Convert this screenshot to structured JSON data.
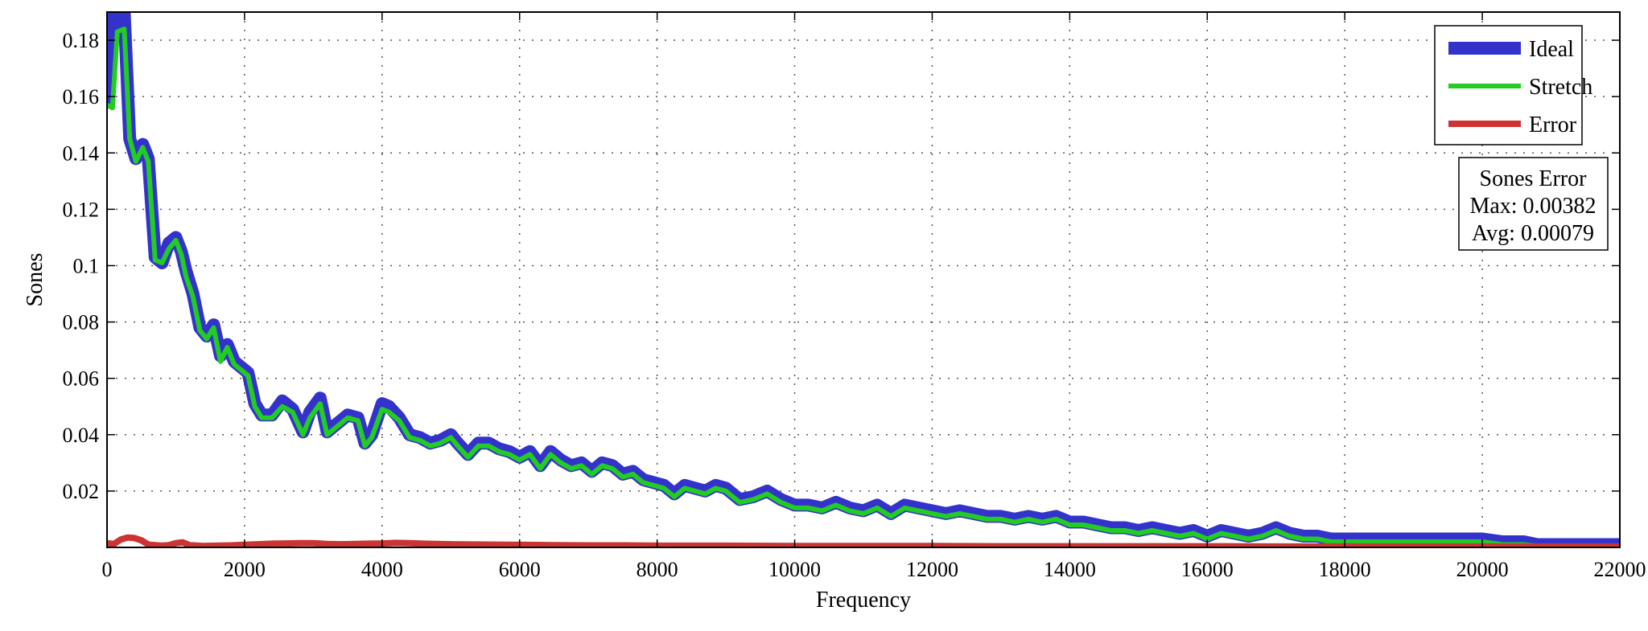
{
  "chart_data": {
    "type": "line",
    "xlabel": "Frequency",
    "ylabel": "Sones",
    "xlim": [
      0,
      22000
    ],
    "ylim": [
      0,
      0.19
    ],
    "grid": true,
    "x_ticks": [
      0,
      2000,
      4000,
      6000,
      8000,
      10000,
      12000,
      14000,
      16000,
      18000,
      20000,
      22000
    ],
    "x_tick_labels": [
      "0",
      "2000",
      "4000",
      "6000",
      "8000",
      "10000",
      "12000",
      "14000",
      "16000",
      "18000",
      "20000",
      "22000"
    ],
    "y_ticks": [
      0.02,
      0.04,
      0.06,
      0.08,
      0.1,
      0.12,
      0.14,
      0.16,
      0.18
    ],
    "y_tick_labels": [
      "0.02",
      "0.04",
      "0.06",
      "0.08",
      "0.1",
      "0.12",
      "0.14",
      "0.16",
      "0.18"
    ],
    "legend_position": "top-right",
    "series": [
      {
        "name": "Ideal",
        "color": "#3333cc",
        "x": [
          0,
          80,
          150,
          250,
          330,
          420,
          520,
          600,
          700,
          800,
          900,
          1000,
          1080,
          1150,
          1250,
          1350,
          1450,
          1550,
          1650,
          1750,
          1850,
          1950,
          2050,
          2150,
          2250,
          2400,
          2550,
          2700,
          2850,
          2950,
          3100,
          3200,
          3350,
          3500,
          3650,
          3750,
          3850,
          4000,
          4100,
          4250,
          4400,
          4550,
          4700,
          4850,
          5000,
          5100,
          5250,
          5400,
          5550,
          5700,
          5850,
          6000,
          6150,
          6300,
          6450,
          6600,
          6750,
          6900,
          7050,
          7200,
          7350,
          7500,
          7650,
          7800,
          7950,
          8100,
          8250,
          8400,
          8550,
          8700,
          8850,
          9000,
          9200,
          9400,
          9600,
          9800,
          10000,
          10200,
          10400,
          10600,
          10800,
          11000,
          11200,
          11400,
          11600,
          11800,
          12000,
          12200,
          12400,
          12600,
          12800,
          13000,
          13200,
          13400,
          13600,
          13800,
          14000,
          14200,
          14400,
          14600,
          14800,
          15000,
          15200,
          15400,
          15600,
          15800,
          16000,
          16200,
          16400,
          16600,
          16800,
          17000,
          17200,
          17400,
          17600,
          17800,
          18000,
          18200,
          18500,
          18800,
          19100,
          19400,
          19700,
          20000,
          20300,
          20600,
          20800,
          21000,
          21400,
          22000
        ],
        "values": [
          0.158,
          0.19,
          0.185,
          0.19,
          0.145,
          0.138,
          0.143,
          0.138,
          0.103,
          0.101,
          0.108,
          0.11,
          0.105,
          0.098,
          0.09,
          0.078,
          0.075,
          0.079,
          0.068,
          0.072,
          0.066,
          0.064,
          0.062,
          0.051,
          0.047,
          0.047,
          0.052,
          0.049,
          0.041,
          0.048,
          0.053,
          0.041,
          0.044,
          0.047,
          0.046,
          0.037,
          0.04,
          0.051,
          0.05,
          0.046,
          0.04,
          0.039,
          0.037,
          0.038,
          0.04,
          0.037,
          0.033,
          0.037,
          0.037,
          0.035,
          0.034,
          0.032,
          0.034,
          0.029,
          0.034,
          0.031,
          0.029,
          0.03,
          0.027,
          0.03,
          0.029,
          0.026,
          0.027,
          0.024,
          0.023,
          0.022,
          0.019,
          0.022,
          0.021,
          0.02,
          0.022,
          0.021,
          0.017,
          0.018,
          0.02,
          0.017,
          0.015,
          0.015,
          0.014,
          0.016,
          0.014,
          0.013,
          0.015,
          0.012,
          0.015,
          0.014,
          0.013,
          0.012,
          0.013,
          0.012,
          0.011,
          0.011,
          0.01,
          0.011,
          0.01,
          0.011,
          0.009,
          0.009,
          0.008,
          0.007,
          0.007,
          0.006,
          0.007,
          0.006,
          0.005,
          0.006,
          0.004,
          0.006,
          0.005,
          0.004,
          0.005,
          0.007,
          0.005,
          0.004,
          0.004,
          0.003,
          0.003,
          0.003,
          0.003,
          0.003,
          0.003,
          0.003,
          0.003,
          0.003,
          0.002,
          0.002,
          0.001,
          0.001,
          0.001,
          0.001
        ]
      },
      {
        "name": "Stretch",
        "color": "#22cc22",
        "x": [
          0,
          80,
          150,
          250,
          330,
          420,
          520,
          600,
          700,
          800,
          900,
          1000,
          1080,
          1150,
          1250,
          1350,
          1450,
          1550,
          1650,
          1750,
          1850,
          1950,
          2050,
          2150,
          2250,
          2400,
          2550,
          2700,
          2850,
          2950,
          3100,
          3200,
          3350,
          3500,
          3650,
          3750,
          3850,
          4000,
          4100,
          4250,
          4400,
          4550,
          4700,
          4850,
          5000,
          5100,
          5250,
          5400,
          5550,
          5700,
          5850,
          6000,
          6150,
          6300,
          6450,
          6600,
          6750,
          6900,
          7050,
          7200,
          7350,
          7500,
          7650,
          7800,
          7950,
          8100,
          8250,
          8400,
          8550,
          8700,
          8850,
          9000,
          9200,
          9400,
          9600,
          9800,
          10000,
          10200,
          10400,
          10600,
          10800,
          11000,
          11200,
          11400,
          11600,
          11800,
          12000,
          12200,
          12400,
          12600,
          12800,
          13000,
          13200,
          13400,
          13600,
          13800,
          14000,
          14200,
          14400,
          14600,
          14800,
          15000,
          15200,
          15400,
          15600,
          15800,
          16000,
          16200,
          16400,
          16600,
          16800,
          17000,
          17200,
          17400,
          17600,
          17800,
          18000,
          18200,
          18500,
          18800,
          19100,
          19400,
          19700,
          20000,
          20300,
          20600,
          20800,
          21000,
          21400,
          22000
        ],
        "values": [
          0.157,
          0.156,
          0.183,
          0.184,
          0.145,
          0.137,
          0.142,
          0.137,
          0.102,
          0.101,
          0.106,
          0.109,
          0.104,
          0.096,
          0.089,
          0.077,
          0.074,
          0.078,
          0.066,
          0.071,
          0.065,
          0.063,
          0.061,
          0.05,
          0.046,
          0.046,
          0.05,
          0.048,
          0.04,
          0.046,
          0.051,
          0.04,
          0.043,
          0.046,
          0.045,
          0.036,
          0.039,
          0.049,
          0.048,
          0.045,
          0.039,
          0.038,
          0.036,
          0.037,
          0.039,
          0.036,
          0.032,
          0.036,
          0.036,
          0.034,
          0.033,
          0.031,
          0.033,
          0.028,
          0.033,
          0.03,
          0.028,
          0.029,
          0.026,
          0.029,
          0.028,
          0.025,
          0.026,
          0.023,
          0.022,
          0.021,
          0.018,
          0.021,
          0.02,
          0.019,
          0.021,
          0.02,
          0.016,
          0.017,
          0.019,
          0.016,
          0.014,
          0.014,
          0.013,
          0.015,
          0.013,
          0.012,
          0.014,
          0.011,
          0.014,
          0.013,
          0.012,
          0.011,
          0.012,
          0.011,
          0.01,
          0.01,
          0.009,
          0.01,
          0.009,
          0.01,
          0.008,
          0.008,
          0.007,
          0.006,
          0.006,
          0.005,
          0.006,
          0.005,
          0.004,
          0.005,
          0.003,
          0.005,
          0.004,
          0.003,
          0.004,
          0.006,
          0.004,
          0.003,
          0.003,
          0.002,
          0.002,
          0.002,
          0.002,
          0.002,
          0.002,
          0.002,
          0.002,
          0.002,
          0.001,
          0.001,
          0.0005,
          0.0005,
          0.0005,
          0.0005
        ]
      },
      {
        "name": "Error",
        "color": "#cc3333",
        "x": [
          0,
          100,
          200,
          300,
          400,
          500,
          600,
          700,
          800,
          900,
          1000,
          1100,
          1200,
          1400,
          1600,
          1800,
          2000,
          2200,
          2400,
          2600,
          2800,
          3000,
          3200,
          3400,
          3600,
          3800,
          4000,
          4200,
          4400,
          4600,
          4800,
          5000,
          5500,
          6000,
          6500,
          7000,
          7500,
          8000,
          9000,
          10000,
          11000,
          12000,
          13000,
          14000,
          15000,
          16000,
          17000,
          18000,
          19000,
          20000,
          21000,
          22000
        ],
        "values": [
          0.0015,
          0.0012,
          0.0028,
          0.0035,
          0.0033,
          0.0025,
          0.001,
          0.0008,
          0.0006,
          0.0008,
          0.0015,
          0.0018,
          0.0008,
          0.0005,
          0.0006,
          0.0007,
          0.0009,
          0.0011,
          0.0013,
          0.0014,
          0.0015,
          0.0015,
          0.0012,
          0.0011,
          0.0012,
          0.0013,
          0.0014,
          0.0016,
          0.0015,
          0.0013,
          0.0012,
          0.0011,
          0.001,
          0.0009,
          0.0008,
          0.0007,
          0.0007,
          0.0006,
          0.0006,
          0.0005,
          0.0005,
          0.0005,
          0.0004,
          0.0004,
          0.0004,
          0.0004,
          0.0003,
          0.0003,
          0.0003,
          0.0003,
          0.0003,
          0.0003
        ]
      }
    ],
    "annotation": {
      "title": "Sones Error",
      "lines": [
        "Max: 0.00382",
        "Avg: 0.00079"
      ]
    }
  }
}
